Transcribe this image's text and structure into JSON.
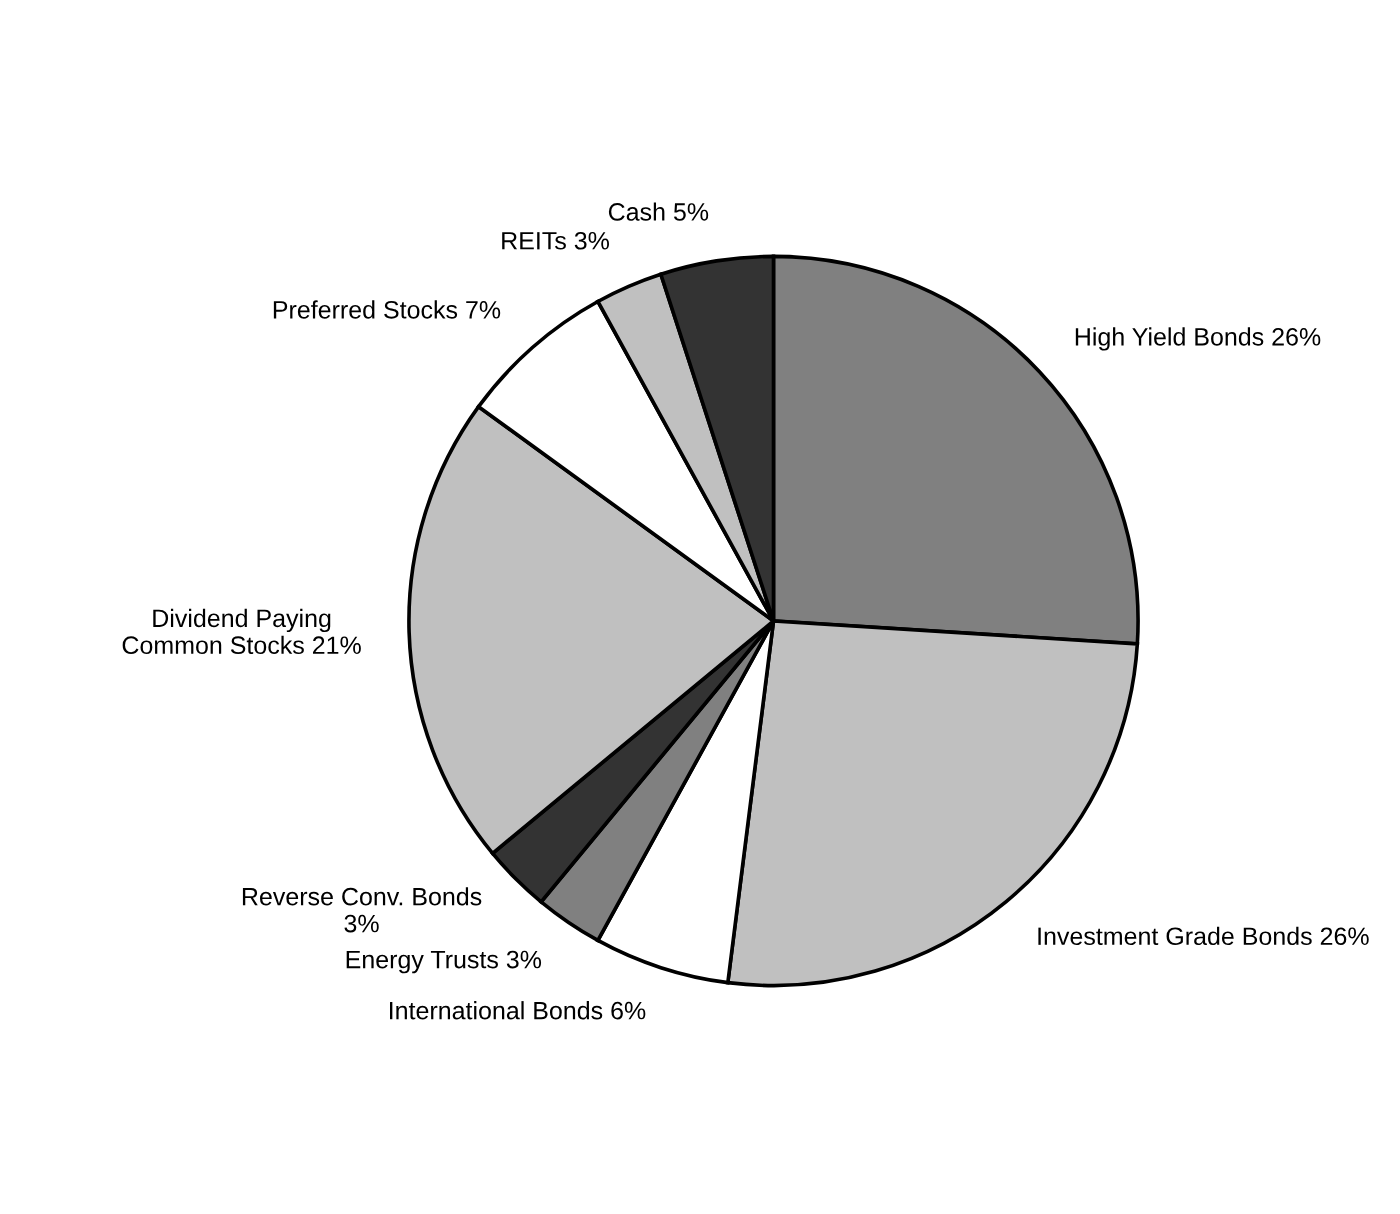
{
  "chart_data": {
    "type": "pie",
    "categories": [
      "High Yield Bonds 26%",
      "Investment Grade Bonds 26%",
      "International Bonds 6%",
      "Energy Trusts 3%",
      "Reverse Conv. Bonds\n3%",
      "Dividend Paying\nCommon Stocks 21%",
      "Preferred Stocks 7%",
      "REITs 3%",
      "Cash 5%"
    ],
    "values": [
      26,
      26,
      6,
      3,
      3,
      21,
      7,
      3,
      5
    ],
    "colors": [
      "#808080",
      "#c0c0c0",
      "#ffffff",
      "#808080",
      "#333333",
      "#c0c0c0",
      "#ffffff",
      "#c0c0c0",
      "#333333"
    ]
  }
}
